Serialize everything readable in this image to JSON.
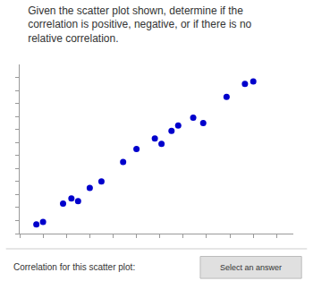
{
  "chart_data": {
    "type": "scatter",
    "title": "Given the scatter plot shown, determine if the\ncorrelation is positive, negative, or if there is no\nrelative correlation.",
    "x": [
      0.5,
      0.7,
      1.3,
      1.55,
      1.75,
      2.1,
      2.45,
      3.1,
      3.5,
      4.05,
      4.25,
      4.55,
      4.75,
      5.2,
      5.5,
      6.2,
      6.75,
      7.0
    ],
    "values": [
      0.35,
      0.45,
      1.15,
      1.35,
      1.25,
      1.75,
      2.0,
      2.75,
      3.25,
      3.65,
      3.45,
      3.95,
      4.15,
      4.45,
      4.25,
      5.25,
      5.75,
      5.85
    ],
    "color": "#0000cc",
    "xlim": [
      0,
      8.2
    ],
    "ylim": [
      0,
      6.5
    ],
    "xticks": [
      0,
      0.7,
      1.4,
      2.1,
      2.8,
      3.5,
      4.2,
      4.9,
      5.6,
      6.3,
      7.0,
      7.7
    ],
    "yticks": [
      0,
      0.5,
      1.0,
      1.5,
      2.0,
      2.5,
      3.0,
      3.5,
      4.0,
      4.5,
      5.0,
      5.5,
      6.0
    ],
    "tick_labels": false,
    "grid": false,
    "annotations": [
      "Correlation for this scatter plot:",
      "Select an answer"
    ]
  }
}
